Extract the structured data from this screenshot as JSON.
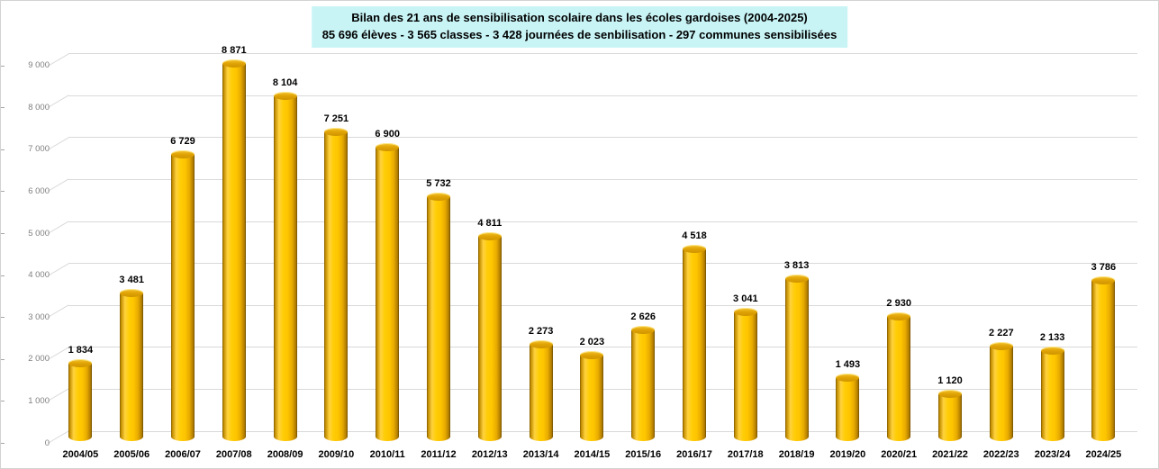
{
  "title": {
    "line1": "Bilan des 21 ans de sensibilisation scolaire dans les écoles gardoises (2004-2025)",
    "line2": "85 696 élèves - 3 565 classes - 3 428 journées de senbilisation - 297 communes sensibilisées",
    "background_color": "#c9f4f6"
  },
  "chart_data": {
    "type": "bar",
    "style": "3d-cylinder",
    "title": "Bilan des 21 ans de sensibilisation scolaire dans les écoles gardoises (2004-2025)",
    "subtitle": "85 696 élèves - 3 565 classes - 3 428 journées de senbilisation - 297 communes sensibilisées",
    "categories": [
      "2004/05",
      "2005/06",
      "2006/07",
      "2007/08",
      "2008/09",
      "2009/10",
      "2010/11",
      "2011/12",
      "2012/13",
      "2013/14",
      "2014/15",
      "2015/16",
      "2016/17",
      "2017/18",
      "2018/19",
      "2019/20",
      "2020/21",
      "2021/22",
      "2022/23",
      "2023/24",
      "2024/25"
    ],
    "values": [
      1834,
      3481,
      6729,
      8871,
      8104,
      7251,
      6900,
      5732,
      4811,
      2273,
      2023,
      2626,
      4518,
      3041,
      3813,
      1493,
      2930,
      1120,
      2227,
      2133,
      3786
    ],
    "value_labels": [
      "1 834",
      "3 481",
      "6 729",
      "8 871",
      "8 104",
      "7 251",
      "6 900",
      "5 732",
      "4 811",
      "2 273",
      "2 023",
      "2 626",
      "4 518",
      "3 041",
      "3 813",
      "1 493",
      "2 930",
      "1 120",
      "2 227",
      "2 133",
      "3 786"
    ],
    "xlabel": "",
    "ylabel": "",
    "ylim": [
      0,
      9000
    ],
    "ytick_step": 1000,
    "ytick_labels": [
      "0",
      "1 000",
      "2 000",
      "3 000",
      "4 000",
      "5 000",
      "6 000",
      "7 000",
      "8 000",
      "9 000"
    ],
    "grid": true,
    "legend": false,
    "bar_color": "#ffc400",
    "gridline_color": "#d9d9d9",
    "ytick_color": "#7f7f7f"
  }
}
